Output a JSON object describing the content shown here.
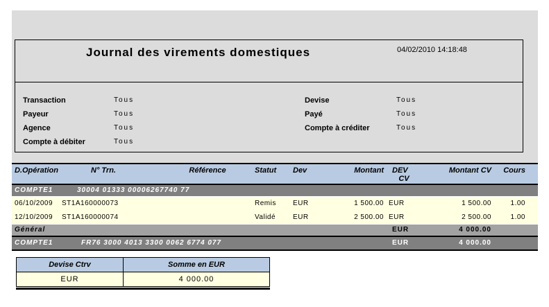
{
  "report": {
    "title": "Journal des virements domestiques",
    "timestamp": "04/02/2010 14:18:48"
  },
  "filters": {
    "left": [
      {
        "label": "Transaction",
        "value": "Tous"
      },
      {
        "label": "Payeur",
        "value": "Tous"
      },
      {
        "label": "Agence",
        "value": "Tous"
      },
      {
        "label": "Compte à débiter",
        "value": "Tous"
      }
    ],
    "right": [
      {
        "label": "Devise",
        "value": "Tous"
      },
      {
        "label": "Payé",
        "value": "Tous"
      },
      {
        "label": "Compte à créditer",
        "value": "Tous"
      }
    ]
  },
  "table": {
    "headers": {
      "d_operation": "D.Opération",
      "n_trn": "N° Trn.",
      "reference": "Référence",
      "statut": "Statut",
      "dev": "Dev",
      "montant": "Montant",
      "dev_cv_line1": "DEV",
      "dev_cv_line2": "CV",
      "montant_cv": "Montant CV",
      "cours": "Cours"
    },
    "group1": {
      "name": "COMPTE1",
      "account": "30004 01333 00006267740 77"
    },
    "rows": [
      {
        "date": "06/10/2009",
        "n_trn": "ST1A160000073",
        "statut": "Remis",
        "dev": "EUR",
        "montant": "1 500.00",
        "dev_cv": "EUR",
        "montant_cv": "1 500.00",
        "cours": "1.00"
      },
      {
        "date": "12/10/2009",
        "n_trn": "ST1A160000074",
        "statut": "Validé",
        "dev": "EUR",
        "montant": "2 500.00",
        "dev_cv": "EUR",
        "montant_cv": "2 500.00",
        "cours": "1.00"
      }
    ],
    "general": {
      "label": "Général",
      "dev_cv": "EUR",
      "montant_cv": "4 000.00"
    },
    "group2": {
      "name": "COMPTE1",
      "account": "FR76 3000 4013 3300 0062 6774 077",
      "dev_cv": "EUR",
      "montant_cv": "4 000.00"
    }
  },
  "summary": {
    "headers": [
      "Devise Ctrv",
      "Somme en EUR"
    ],
    "row": [
      "EUR",
      "4 000.00"
    ]
  },
  "colors": {
    "page_background": "#dcdcdc",
    "table_header_blue": "#b9cbe2",
    "group_row_gray": "#808080",
    "general_row_gray": "#a2a2a2",
    "data_row_cream": "#ffffe1"
  }
}
